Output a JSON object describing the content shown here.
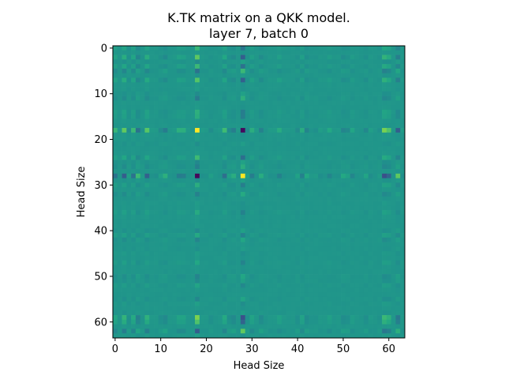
{
  "chart_data": {
    "type": "heatmap",
    "title_lines": [
      "K.TK matrix on a QKK model.",
      "layer 7, batch 0"
    ],
    "xlabel": "Head Size",
    "ylabel": "Head Size",
    "size": 64,
    "xlim": [
      -0.5,
      63.5
    ],
    "ylim": [
      63.5,
      -0.5
    ],
    "x_ticks": [
      0,
      10,
      20,
      30,
      40,
      50,
      60
    ],
    "y_ticks": [
      0,
      10,
      20,
      30,
      40,
      50,
      60
    ],
    "grid": false,
    "colormap": "viridis",
    "vmin": -1,
    "vmax": 1,
    "background_value": 0.05,
    "factor_weights": [
      {
        "index": 18,
        "weight": 1.0
      },
      {
        "index": 28,
        "weight": -1.0
      },
      {
        "index": 59,
        "weight": 0.55
      },
      {
        "index": 2,
        "weight": 0.45
      },
      {
        "index": 7,
        "weight": 0.42
      },
      {
        "index": 62,
        "weight": -0.45
      },
      {
        "index": 60,
        "weight": 0.4
      },
      {
        "index": 24,
        "weight": 0.32
      },
      {
        "index": 5,
        "weight": -0.3
      },
      {
        "index": 0,
        "weight": 0.28
      },
      {
        "index": 4,
        "weight": 0.3
      },
      {
        "index": 14,
        "weight": 0.22
      },
      {
        "index": 11,
        "weight": -0.22
      },
      {
        "index": 15,
        "weight": 0.2
      },
      {
        "index": 26,
        "weight": -0.2
      },
      {
        "index": 30,
        "weight": 0.2
      },
      {
        "index": 32,
        "weight": -0.18
      },
      {
        "index": 36,
        "weight": 0.18
      },
      {
        "index": 41,
        "weight": 0.18
      },
      {
        "index": 42,
        "weight": -0.15
      },
      {
        "index": 47,
        "weight": 0.15
      },
      {
        "index": 50,
        "weight": -0.15
      },
      {
        "index": 52,
        "weight": 0.12
      },
      {
        "index": 55,
        "weight": -0.12
      }
    ]
  }
}
